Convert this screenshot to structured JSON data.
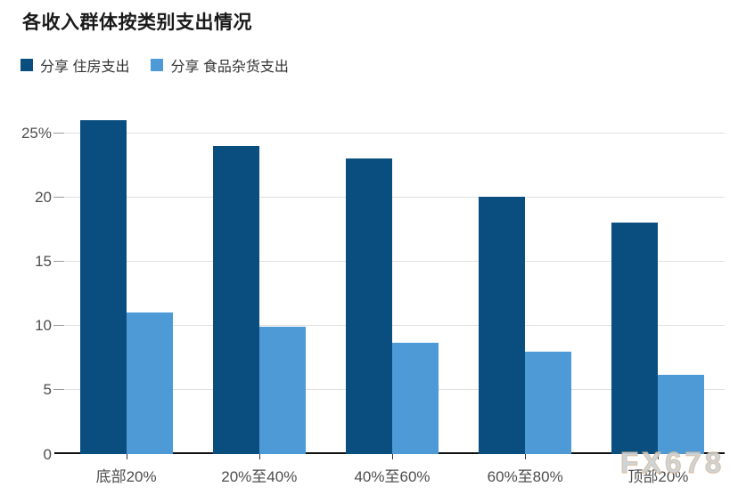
{
  "title": "各收入群体按类别支出情况",
  "watermark": "FX678",
  "legend": {
    "items": [
      {
        "label": "分享 住房支出"
      },
      {
        "label": "分享 食品杂货支出"
      }
    ]
  },
  "colors": {
    "housing": "#0a4e80",
    "grocery": "#4d9ad7",
    "gridline": "#e0e0e0",
    "axis_line": "#111111",
    "axis_label": "#4d4d4d",
    "title_text": "#1a1a1a"
  },
  "chart_data": {
    "type": "bar",
    "title": "各收入群体按类别支出情况",
    "categories": [
      "底部20%",
      "20%至40%",
      "40%至60%",
      "60%至80%",
      "顶部20%"
    ],
    "series": [
      {
        "name": "分享 住房支出",
        "color": "#0a4e80",
        "values": [
          26,
          24,
          23,
          20,
          18
        ]
      },
      {
        "name": "分享 食品杂货支出",
        "color": "#4d9ad7",
        "values": [
          11,
          9.9,
          8.7,
          8,
          6.2
        ]
      }
    ],
    "xlabel": "",
    "ylabel": "",
    "ylim": [
      0,
      26.5
    ],
    "yticks": [
      0,
      5,
      10,
      15,
      20,
      25
    ],
    "ytick_labels": [
      "0",
      "5",
      "10",
      "15",
      "20",
      "25%"
    ],
    "grid": "horizontal",
    "legend_position": "top-left"
  }
}
